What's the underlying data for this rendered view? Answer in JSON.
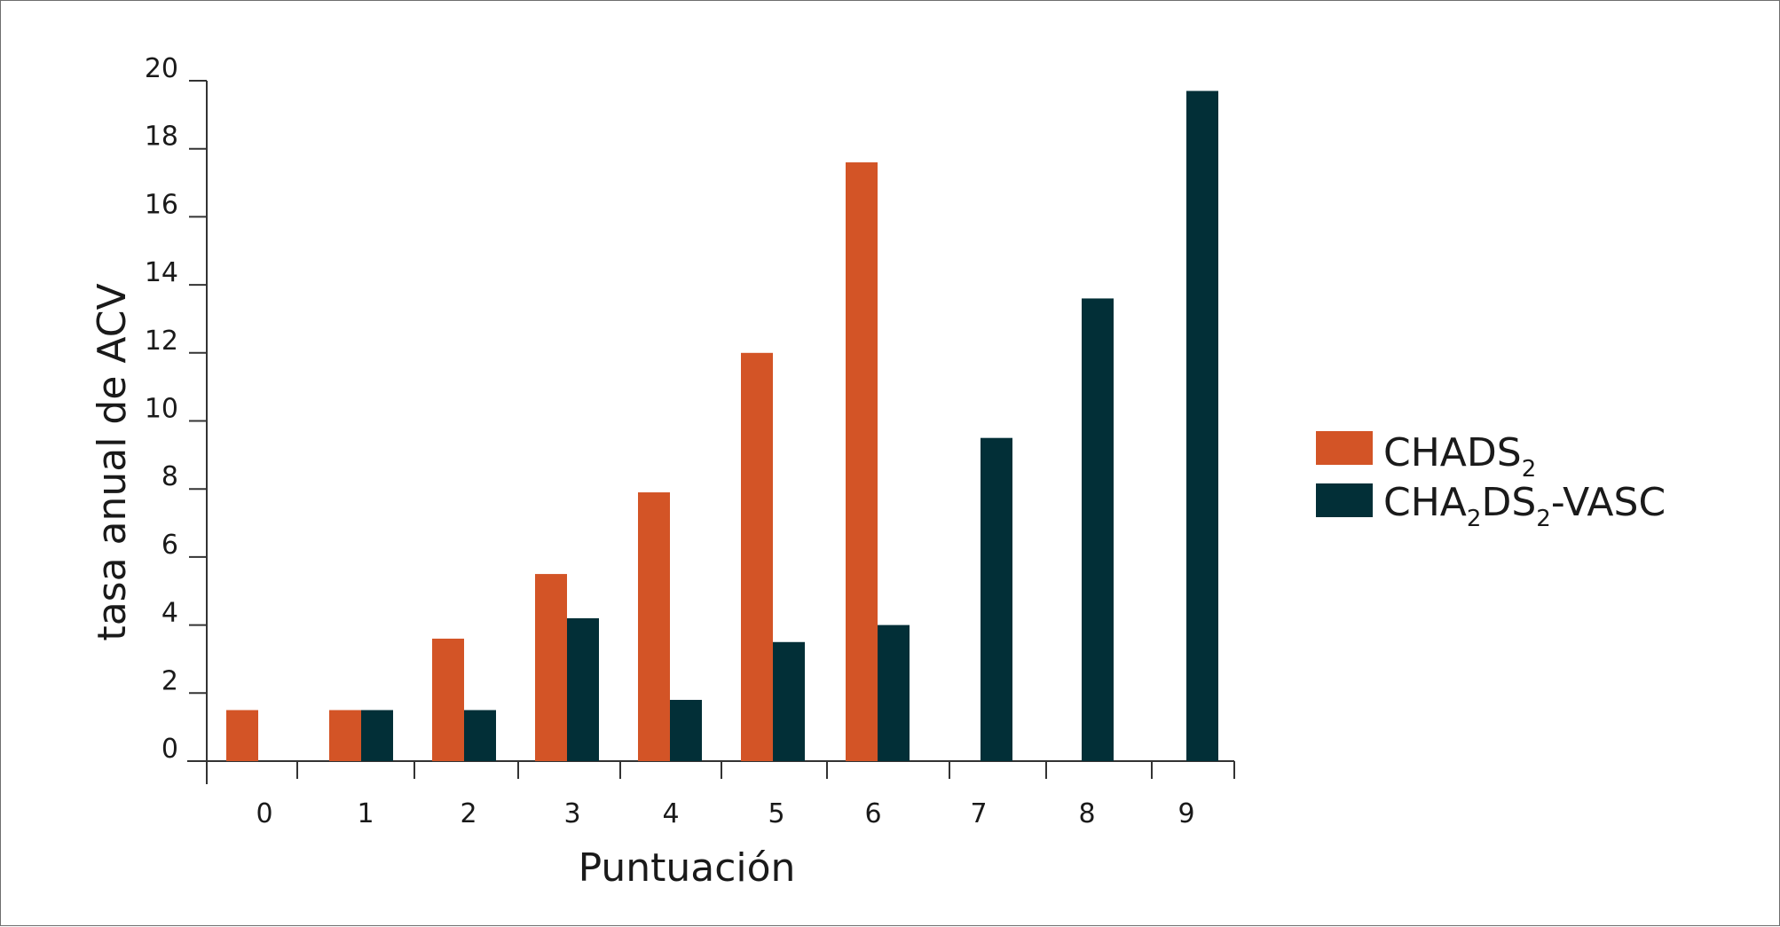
{
  "colors": {
    "chads2": "#d35426",
    "cha2ds2vasc": "#022f37",
    "axis": "#333333"
  },
  "chart_data": {
    "type": "bar",
    "xlabel": "Puntuación",
    "ylabel": "tasa anual de ACV",
    "categories": [
      "0",
      "1",
      "2",
      "3",
      "4",
      "5",
      "6",
      "7",
      "8",
      "9"
    ],
    "y_ticks": [
      "0",
      "2",
      "4",
      "6",
      "8",
      "10",
      "12",
      "14",
      "16",
      "18",
      "20"
    ],
    "ylim": [
      0,
      20
    ],
    "grid": false,
    "legend_position": "right",
    "series": [
      {
        "name": "CHADS2",
        "legend_main": "CHADS",
        "legend_sub": "2",
        "values": [
          1.5,
          1.5,
          3.6,
          5.5,
          7.9,
          12.0,
          17.6,
          null,
          null,
          null
        ]
      },
      {
        "name": "CHA2DS2-VASC",
        "legend_parts": [
          "CHA",
          "2",
          "DS",
          "2",
          "-VASC"
        ],
        "values": [
          null,
          1.5,
          1.5,
          4.2,
          1.8,
          3.5,
          4.0,
          9.5,
          13.6,
          19.7
        ]
      }
    ]
  }
}
